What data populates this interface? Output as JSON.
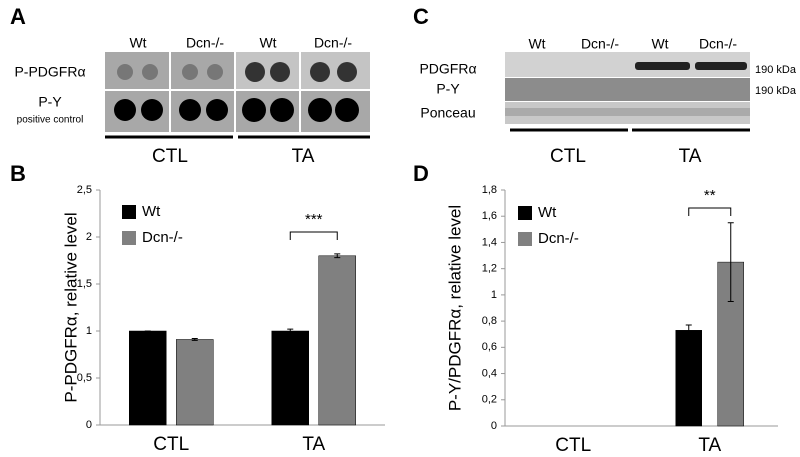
{
  "blots": [
    {
      "panel": "A",
      "columns": [
        "Wt",
        "Dcn-/-",
        "Wt",
        "Dcn-/-"
      ],
      "rows": [
        "P-PDGFRα",
        "P-Y"
      ],
      "row_note": "positive control",
      "groups": [
        "CTL",
        "TA"
      ]
    },
    {
      "panel": "C",
      "columns": [
        "Wt",
        "Dcn-/-",
        "Wt",
        "Dcn-/-"
      ],
      "rows": [
        "PDGFRα",
        "P-Y",
        "Ponceau"
      ],
      "sizes": [
        "190 kDa",
        "190 kDa"
      ],
      "groups": [
        "CTL",
        "TA"
      ]
    }
  ],
  "chart_data": [
    {
      "type": "bar",
      "panel": "B",
      "y_label": "P-PDGFRα, relative level",
      "categories": [
        "CTL",
        "TA"
      ],
      "series": [
        {
          "name": "Wt",
          "color": "#000000",
          "values": [
            1,
            1
          ],
          "errors": [
            0,
            0.02
          ]
        },
        {
          "name": "Dcn-/-",
          "color": "#808080",
          "values": [
            0.91,
            1.8
          ],
          "errors": [
            0.01,
            0.02
          ]
        }
      ],
      "ylim": [
        0,
        2.5
      ],
      "yticks": [
        0,
        {
          "value": 0.5,
          "label": "0,5"
        },
        1,
        {
          "value": 1.5,
          "label": "1,5"
        },
        2,
        {
          "value": 2.5,
          "label": "2,5"
        }
      ],
      "annotation": "***",
      "legend": "upper left",
      "grid": false
    },
    {
      "type": "bar",
      "panel": "D",
      "y_label": "P-Y/PDGFRα, relative level",
      "categories": [
        "CTL",
        "TA"
      ],
      "series": [
        {
          "name": "Wt",
          "color": "#000000",
          "values": [
            null,
            0.73
          ],
          "errors": [
            null,
            0.04
          ]
        },
        {
          "name": "Dcn-/-",
          "color": "#808080",
          "values": [
            null,
            1.25
          ],
          "errors": [
            null,
            0.3
          ]
        }
      ],
      "ylim": [
        0,
        1.8
      ],
      "yticks": [
        0,
        {
          "value": 0.2,
          "label": "0,2"
        },
        {
          "value": 0.4,
          "label": "0,4"
        },
        {
          "value": 0.6,
          "label": "0,6"
        },
        {
          "value": 0.8,
          "label": "0,8"
        },
        1,
        {
          "value": 1.2,
          "label": "1,2"
        },
        {
          "value": 1.4,
          "label": "1,4"
        },
        {
          "value": 1.6,
          "label": "1,6"
        },
        {
          "value": 1.8,
          "label": "1,8"
        }
      ],
      "annotation": "**",
      "legend": "upper left",
      "grid": false
    }
  ]
}
